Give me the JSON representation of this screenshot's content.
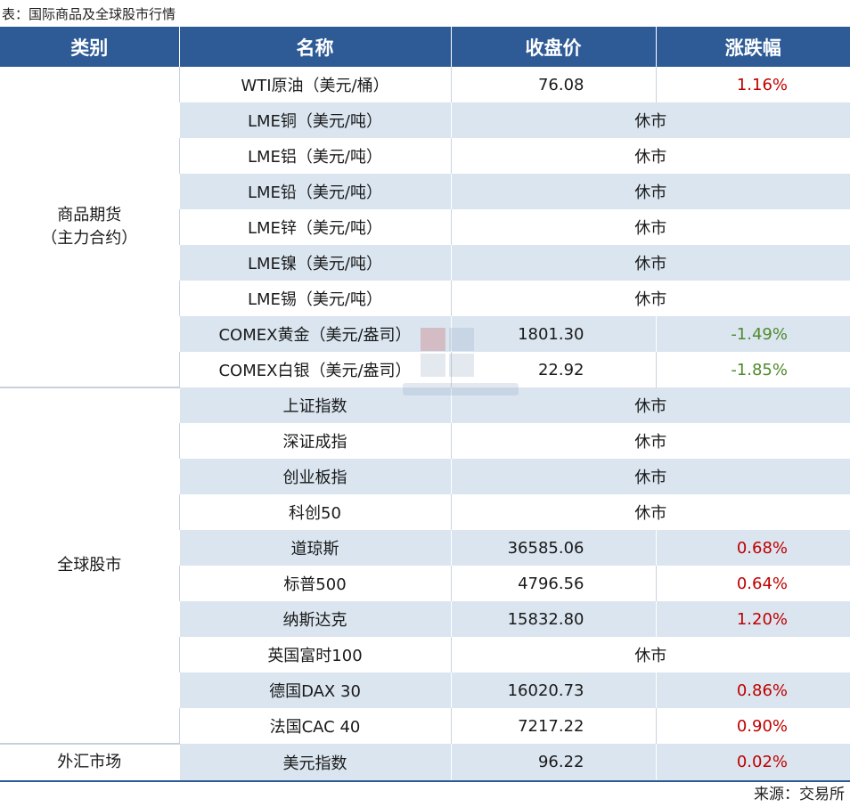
{
  "caption": "表：国际商品及全球股市行情",
  "source": "来源：交易所",
  "headers": [
    "类别",
    "名称",
    "收盘价",
    "涨跌幅"
  ],
  "colors": {
    "header_bg": "#2e5b96",
    "row_shade": "#dae5f0",
    "up": "#c00000",
    "down": "#4f8a2d"
  },
  "categories": [
    {
      "label": "商品期货\n（主力合约）",
      "rows": 9
    },
    {
      "label": "全球股市",
      "rows": 10
    },
    {
      "label": "外汇市场",
      "rows": 1
    }
  ],
  "rows": [
    {
      "name": "WTI原油（美元/桶）",
      "price": "76.08",
      "change": "1.16%",
      "dir": "up"
    },
    {
      "name": "LME铜（美元/吨）",
      "closed": "休市"
    },
    {
      "name": "LME铝（美元/吨）",
      "closed": "休市"
    },
    {
      "name": "LME铅（美元/吨）",
      "closed": "休市"
    },
    {
      "name": "LME锌（美元/吨）",
      "closed": "休市"
    },
    {
      "name": "LME镍（美元/吨）",
      "closed": "休市"
    },
    {
      "name": "LME锡（美元/吨）",
      "closed": "休市"
    },
    {
      "name": "COMEX黄金（美元/盎司）",
      "price": "1801.30",
      "change": "-1.49%",
      "dir": "down"
    },
    {
      "name": "COMEX白银（美元/盎司）",
      "price": "22.92",
      "change": "-1.85%",
      "dir": "down"
    },
    {
      "name": "上证指数",
      "closed": "休市"
    },
    {
      "name": "深证成指",
      "closed": "休市"
    },
    {
      "name": "创业板指",
      "closed": "休市"
    },
    {
      "name": "科创50",
      "closed": "休市"
    },
    {
      "name": "道琼斯",
      "price": "36585.06",
      "change": "0.68%",
      "dir": "up"
    },
    {
      "name": "标普500",
      "price": "4796.56",
      "change": "0.64%",
      "dir": "up"
    },
    {
      "name": "纳斯达克",
      "price": "15832.80",
      "change": "1.20%",
      "dir": "up"
    },
    {
      "name": "英国富时100",
      "closed": "休市"
    },
    {
      "name": "德国DAX 30",
      "price": "16020.73",
      "change": "0.86%",
      "dir": "up"
    },
    {
      "name": "法国CAC 40",
      "price": "7217.22",
      "change": "0.90%",
      "dir": "up"
    },
    {
      "name": "美元指数",
      "price": "96.22",
      "change": "0.02%",
      "dir": "up"
    }
  ],
  "watermark": {
    "text_cn": "我的钢铁",
    "text_en": "Mysteel.com"
  }
}
